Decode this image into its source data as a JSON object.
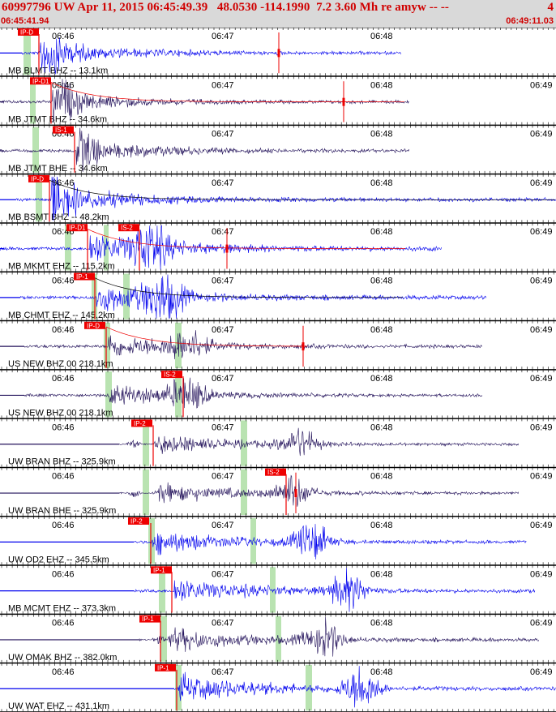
{
  "header": {
    "title": "60997796 UW Apr 11, 2015 06:45:49.39   48.0530 -114.1990  7.2 3.60 Mh re amyw -- --",
    "count": "4",
    "start_time": "06:45:41.94",
    "end_time": "06:49:11.03"
  },
  "colors": {
    "blue_trace": "#0000ee",
    "dark_trace": "#22115a",
    "pick": "#ee0000",
    "band": "#b9e3b1"
  },
  "traces": [
    {
      "label": "MB BLMT BHZ -- 13.1km",
      "color": "blue",
      "picks": [
        "IP-D"
      ],
      "times": [
        "06:46",
        "06:47",
        "06:48"
      ]
    },
    {
      "label": "MB JTMT BHZ -- 34.6km",
      "color": "dark",
      "picks": [
        "IP-D1"
      ],
      "times": [
        "06:46",
        "06:47",
        "06:48",
        "06:49"
      ]
    },
    {
      "label": "MB JTMT BHE -- 34.6km",
      "color": "dark",
      "picks": [
        "IS-1"
      ],
      "times": [
        "06:46",
        "06:47",
        "06:48",
        "06:49"
      ]
    },
    {
      "label": "MB BSMT BHZ -- 48.2km",
      "color": "blue",
      "picks": [
        "IP-D"
      ],
      "times": [
        "06:46",
        "06:47",
        "06:48",
        "06:49"
      ]
    },
    {
      "label": "MB MKMT EHZ -- 115.2km",
      "color": "blue",
      "picks": [
        "IP-D1",
        "IS-2"
      ],
      "times": [
        "06:46",
        "06:47",
        "06:48",
        "06:49"
      ]
    },
    {
      "label": "MB CHMT EHZ -- 145.2km",
      "color": "blue",
      "picks": [
        "IP-1"
      ],
      "times": [
        "06:46",
        "06:47",
        "06:48",
        "06:49"
      ]
    },
    {
      "label": "US NEW BHZ 00 218.1km",
      "color": "dark",
      "picks": [
        "IP-D"
      ],
      "times": [
        "06:46",
        "06:47",
        "06:48",
        "06:49"
      ]
    },
    {
      "label": "US NEW BHZ 00 218.1km",
      "color": "dark",
      "picks": [
        "IS-2"
      ],
      "times": [
        "06:46",
        "06:47",
        "06:48",
        "06:49"
      ]
    },
    {
      "label": "UW BRAN BHZ -- 325.9km",
      "color": "dark",
      "picks": [
        "IP-2"
      ],
      "times": [
        "06:46",
        "06:47",
        "06:48",
        "06:49"
      ]
    },
    {
      "label": "UW BRAN BHE -- 325.9km",
      "color": "dark",
      "picks": [
        "IS-2"
      ],
      "times": [
        "06:46",
        "06:47",
        "06:48",
        "06:49"
      ]
    },
    {
      "label": "UW OD2 EHZ -- 345.5km",
      "color": "blue",
      "picks": [
        "IP-2"
      ],
      "times": [
        "06:46",
        "06:47",
        "06:48",
        "06:49"
      ]
    },
    {
      "label": "MB MCMT EHZ -- 373.3km",
      "color": "blue",
      "picks": [
        "IP-1"
      ],
      "times": [
        "06:46",
        "06:47",
        "06:48",
        "06:49"
      ]
    },
    {
      "label": "UW OMAK BHZ -- 382.0km",
      "color": "dark",
      "picks": [
        "IP-1"
      ],
      "times": [
        "06:46",
        "06:47",
        "06:48",
        "06:49"
      ]
    },
    {
      "label": "UW WAT EHZ -- 431.1km",
      "color": "blue",
      "picks": [
        "IP-1"
      ],
      "times": [
        "06:46",
        "06:47",
        "06:48",
        "06:49"
      ]
    }
  ]
}
